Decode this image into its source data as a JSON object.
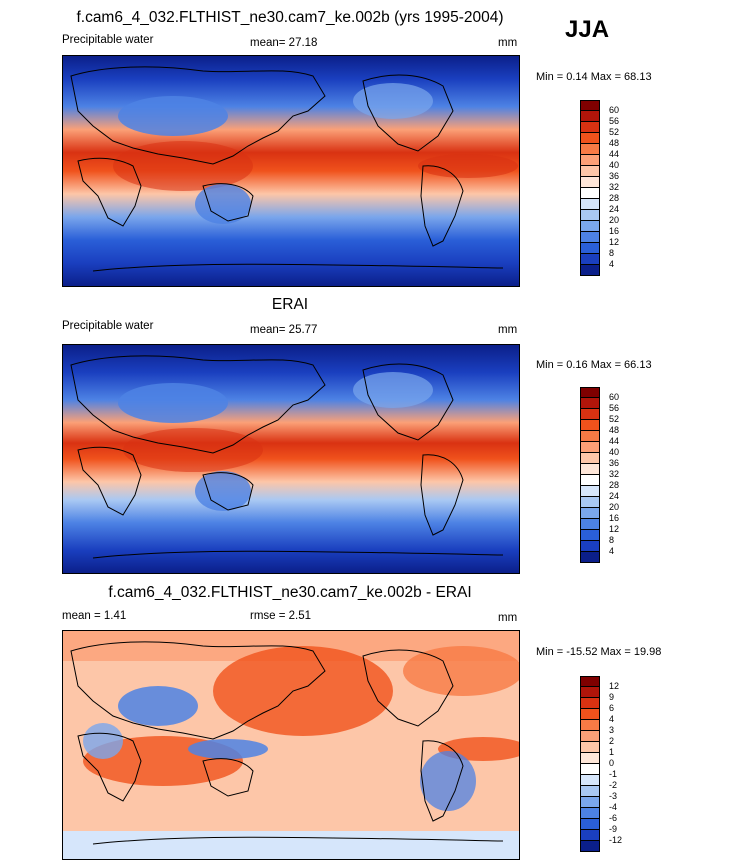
{
  "season": "JJA",
  "panels": [
    {
      "title": "f.cam6_4_032.FLTHIST_ne30.cam7_ke.002b (yrs 1995-2004)",
      "left_label": "Precipitable water",
      "mean_label": "mean=  27.18",
      "units": "mm",
      "minmax": "Min =   0.14 Max =  68.13",
      "colorbar": {
        "labels": [
          "60",
          "56",
          "52",
          "48",
          "44",
          "40",
          "36",
          "32",
          "28",
          "24",
          "20",
          "16",
          "12",
          "8",
          "4"
        ],
        "colors": [
          "#7f0000",
          "#b0150a",
          "#d93212",
          "#f0521c",
          "#f77a45",
          "#fba077",
          "#fdc6a8",
          "#fee6d8",
          "#ffffff",
          "#d6e6fb",
          "#a9c8f3",
          "#7aa6ec",
          "#4d82e4",
          "#2a5fd8",
          "#1a3fbf",
          "#0b1f8a"
        ]
      }
    },
    {
      "title": "ERAI",
      "left_label": "Precipitable water",
      "mean_label": "mean=  25.77",
      "units": "mm",
      "minmax": "Min =   0.16 Max =  66.13",
      "colorbar": {
        "labels": [
          "60",
          "56",
          "52",
          "48",
          "44",
          "40",
          "36",
          "32",
          "28",
          "24",
          "20",
          "16",
          "12",
          "8",
          "4"
        ],
        "colors": [
          "#7f0000",
          "#b0150a",
          "#d93212",
          "#f0521c",
          "#f77a45",
          "#fba077",
          "#fdc6a8",
          "#fee6d8",
          "#ffffff",
          "#d6e6fb",
          "#a9c8f3",
          "#7aa6ec",
          "#4d82e4",
          "#2a5fd8",
          "#1a3fbf",
          "#0b1f8a"
        ]
      }
    },
    {
      "title": "f.cam6_4_032.FLTHIST_ne30.cam7_ke.002b - ERAI",
      "left_label": "mean =   1.41",
      "mean_label": "rmse =   2.51",
      "units": "mm",
      "minmax": "Min = -15.52 Max =  19.98",
      "colorbar": {
        "labels": [
          "12",
          "9",
          "6",
          "4",
          "3",
          "2",
          "1",
          "0",
          "-1",
          "-2",
          "-3",
          "-4",
          "-6",
          "-9",
          "-12"
        ],
        "colors": [
          "#7f0000",
          "#b0150a",
          "#d93212",
          "#f0521c",
          "#f77a45",
          "#fba077",
          "#fdc6a8",
          "#fee6d8",
          "#ffffff",
          "#d6e6fb",
          "#a9c8f3",
          "#7aa6ec",
          "#4d82e4",
          "#2a5fd8",
          "#1a3fbf",
          "#0b1f8a"
        ]
      }
    }
  ]
}
